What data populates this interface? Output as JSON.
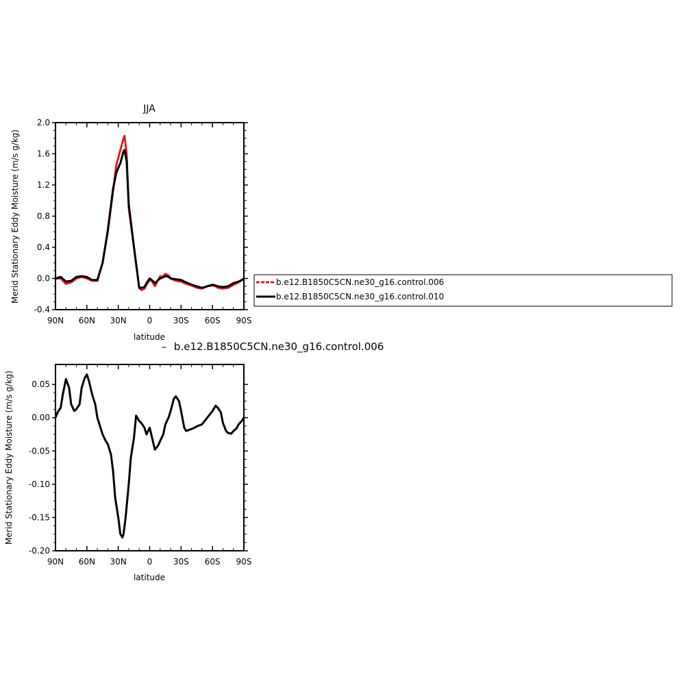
{
  "chart_data": [
    {
      "type": "line",
      "title": "JJA",
      "xlabel": "latitude",
      "ylabel": "Merid Stationary Eddy Moisture (m/s g/kg)",
      "xlim": [
        90,
        -90
      ],
      "ylim": [
        -0.4,
        2.0
      ],
      "x_ticks": [
        90,
        60,
        30,
        0,
        -30,
        -60,
        -90
      ],
      "x_tick_labels": [
        "90N",
        "60N",
        "30N",
        "0",
        "30S",
        "60S",
        "90S"
      ],
      "y_ticks": [
        -0.4,
        0.0,
        0.4,
        0.8,
        1.2,
        1.6,
        2.0
      ],
      "y_tick_labels": [
        "-0.4",
        "0.0",
        "0.4",
        "0.8",
        "1.2",
        "1.6",
        "2.0"
      ],
      "grid": false,
      "legend": {
        "placement": "right, outside plot"
      },
      "series": [
        {
          "name": "b.e12.B1850C5CN.ne30_g16.control.006",
          "color": "#e41a1c",
          "dash": true,
          "x": [
            90,
            85,
            80,
            75,
            70,
            65,
            60,
            55,
            50,
            45,
            40,
            35,
            32,
            30,
            28,
            26,
            25,
            24,
            22,
            20,
            15,
            10,
            8,
            5,
            3,
            0,
            -2,
            -5,
            -8,
            -10,
            -12,
            -15,
            -18,
            -20,
            -25,
            -30,
            -35,
            -40,
            -45,
            -50,
            -55,
            -60,
            -63,
            -65,
            -70,
            -75,
            -80,
            -85,
            -88,
            -90
          ],
          "y": [
            0.0,
            0.0,
            -0.07,
            -0.05,
            0.0,
            0.02,
            0.0,
            -0.03,
            -0.03,
            0.2,
            0.6,
            1.12,
            1.45,
            1.55,
            1.65,
            1.75,
            1.8,
            1.83,
            1.6,
            0.9,
            0.4,
            -0.12,
            -0.15,
            -0.13,
            -0.08,
            -0.02,
            -0.03,
            -0.1,
            -0.02,
            0.03,
            0.02,
            0.06,
            0.04,
            0.0,
            -0.03,
            -0.04,
            -0.07,
            -0.09,
            -0.12,
            -0.13,
            -0.1,
            -0.09,
            -0.1,
            -0.12,
            -0.13,
            -0.12,
            -0.08,
            -0.05,
            -0.02,
            0.0
          ]
        },
        {
          "name": "b.e12.B1850C5CN.ne30_g16.control.010",
          "color": "#000000",
          "dash": false,
          "x": [
            90,
            85,
            80,
            75,
            70,
            65,
            60,
            55,
            50,
            45,
            40,
            35,
            32,
            30,
            28,
            26,
            25,
            24,
            22,
            20,
            15,
            10,
            8,
            5,
            3,
            0,
            -2,
            -5,
            -8,
            -10,
            -12,
            -15,
            -18,
            -20,
            -25,
            -30,
            -35,
            -40,
            -45,
            -50,
            -55,
            -60,
            -63,
            -65,
            -70,
            -75,
            -80,
            -85,
            -88,
            -90
          ],
          "y": [
            0.0,
            0.02,
            -0.04,
            -0.03,
            0.02,
            0.03,
            0.02,
            -0.02,
            -0.02,
            0.2,
            0.62,
            1.15,
            1.35,
            1.42,
            1.48,
            1.58,
            1.63,
            1.65,
            1.5,
            0.95,
            0.4,
            -0.12,
            -0.12,
            -0.11,
            -0.06,
            0.0,
            -0.02,
            -0.06,
            -0.02,
            0.0,
            0.01,
            0.03,
            0.02,
            0.0,
            -0.01,
            -0.02,
            -0.05,
            -0.08,
            -0.1,
            -0.12,
            -0.1,
            -0.08,
            -0.09,
            -0.1,
            -0.11,
            -0.1,
            -0.06,
            -0.04,
            -0.02,
            0.0
          ]
        }
      ]
    },
    {
      "type": "line",
      "title": "b.e12.B1850C5CN.ne30_g16.control.006",
      "title_prefix": "–",
      "xlabel": "latitude",
      "ylabel": "Merid Stationary Eddy Moisture (m/s g/kg)",
      "xlim": [
        90,
        -90
      ],
      "ylim": [
        -0.2,
        0.08
      ],
      "x_ticks": [
        90,
        60,
        30,
        0,
        -30,
        -60,
        -90
      ],
      "x_tick_labels": [
        "90N",
        "60N",
        "30N",
        "0",
        "30S",
        "60S",
        "90S"
      ],
      "y_ticks": [
        -0.2,
        -0.15,
        -0.1,
        -0.05,
        0.0,
        0.05
      ],
      "y_tick_labels": [
        "-0.20",
        "-0.15",
        "-0.10",
        "-0.05",
        "0.00",
        "0.05"
      ],
      "grid": false,
      "series": [
        {
          "color": "#000000",
          "x": [
            90,
            88,
            85,
            83,
            80,
            77,
            75,
            72,
            70,
            67,
            65,
            62,
            60,
            58,
            55,
            52,
            50,
            47,
            45,
            42,
            40,
            37,
            35,
            33,
            30,
            28,
            26,
            25,
            23,
            20,
            18,
            15,
            13,
            10,
            8,
            5,
            3,
            0,
            -3,
            -5,
            -8,
            -10,
            -13,
            -15,
            -18,
            -20,
            -23,
            -25,
            -28,
            -30,
            -33,
            -35,
            -38,
            -40,
            -43,
            -45,
            -50,
            -55,
            -60,
            -63,
            -65,
            -68,
            -70,
            -73,
            -75,
            -78,
            -80,
            -83,
            -85,
            -88,
            -90
          ],
          "y": [
            0.0,
            0.008,
            0.015,
            0.035,
            0.058,
            0.045,
            0.02,
            0.01,
            0.013,
            0.02,
            0.045,
            0.06,
            0.065,
            0.055,
            0.035,
            0.02,
            0.0,
            -0.015,
            -0.025,
            -0.035,
            -0.04,
            -0.055,
            -0.08,
            -0.12,
            -0.15,
            -0.175,
            -0.18,
            -0.175,
            -0.15,
            -0.1,
            -0.06,
            -0.03,
            0.003,
            -0.005,
            -0.008,
            -0.015,
            -0.025,
            -0.015,
            -0.035,
            -0.048,
            -0.042,
            -0.035,
            -0.025,
            -0.01,
            0.0,
            0.01,
            0.028,
            0.032,
            0.025,
            0.01,
            -0.015,
            -0.02,
            -0.018,
            -0.017,
            -0.015,
            -0.013,
            -0.01,
            0.0,
            0.01,
            0.018,
            0.015,
            0.008,
            -0.008,
            -0.02,
            -0.023,
            -0.024,
            -0.02,
            -0.016,
            -0.01,
            -0.005,
            0.0
          ]
        }
      ]
    }
  ]
}
